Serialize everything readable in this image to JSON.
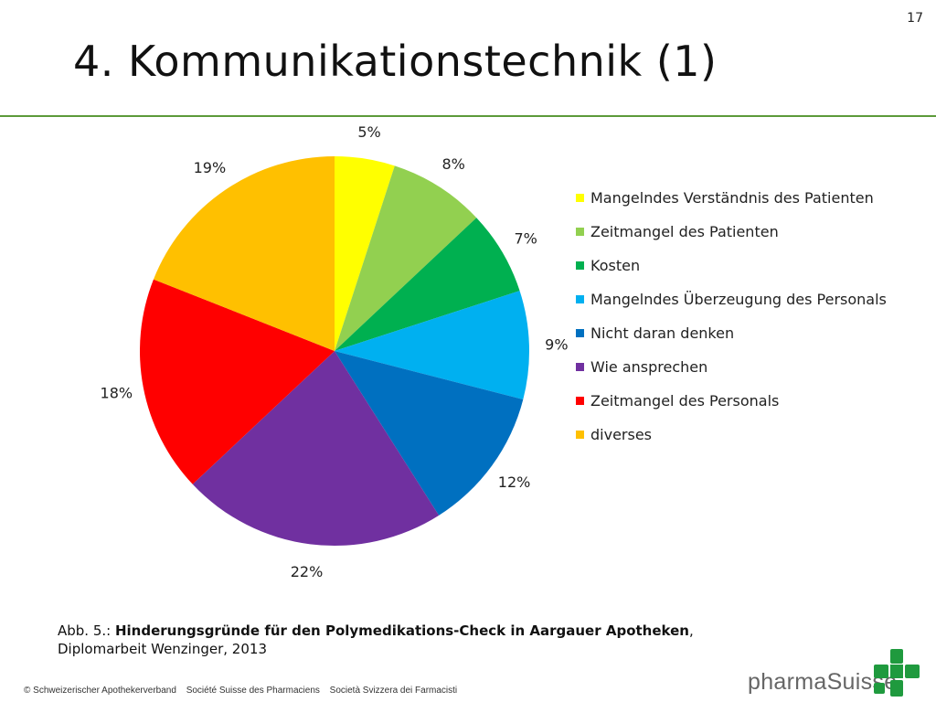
{
  "slide": {
    "number": "17",
    "title": "4. Kommunikationstechnik (1)"
  },
  "caption": {
    "prefix": "Abb. 5.: ",
    "bold": "Hinderungsgründe für den Polymedikations-Check in Aargauer Apotheken",
    "suffix": ",",
    "line2": "Diplomarbeit Wenzinger, 2013"
  },
  "footer": {
    "org_de": "© Schweizerischer Apothekerverband",
    "org_fr": "Société Suisse des Pharmaciens",
    "org_it": "Società Svizzera dei Farmacisti"
  },
  "brand": {
    "name": "pharmaSuisse",
    "logo_icon": "green-cross-logo-icon",
    "logo_color": "#1f9a3e"
  },
  "chart_data": {
    "type": "pie",
    "title": "",
    "legend_position": "right",
    "slices": [
      {
        "label": "Mangelndes Verständnis des Patienten",
        "value": 5,
        "value_label": "5%",
        "color": "#ffff00"
      },
      {
        "label": "Zeitmangel des Patienten",
        "value": 8,
        "value_label": "8%",
        "color": "#92d050"
      },
      {
        "label": "Kosten",
        "value": 7,
        "value_label": "7%",
        "color": "#00b050"
      },
      {
        "label": "Mangelndes Überzeugung des Personals",
        "value": 9,
        "value_label": "9%",
        "color": "#00b0f0"
      },
      {
        "label": "Nicht daran denken",
        "value": 12,
        "value_label": "12%",
        "color": "#0070c0"
      },
      {
        "label": "Wie ansprechen",
        "value": 22,
        "value_label": "22%",
        "color": "#7030a0"
      },
      {
        "label": "Zeitmangel des Personals",
        "value": 18,
        "value_label": "18%",
        "color": "#ff0000"
      },
      {
        "label": "diverses",
        "value": 19,
        "value_label": "19%",
        "color": "#ffc000"
      }
    ]
  }
}
